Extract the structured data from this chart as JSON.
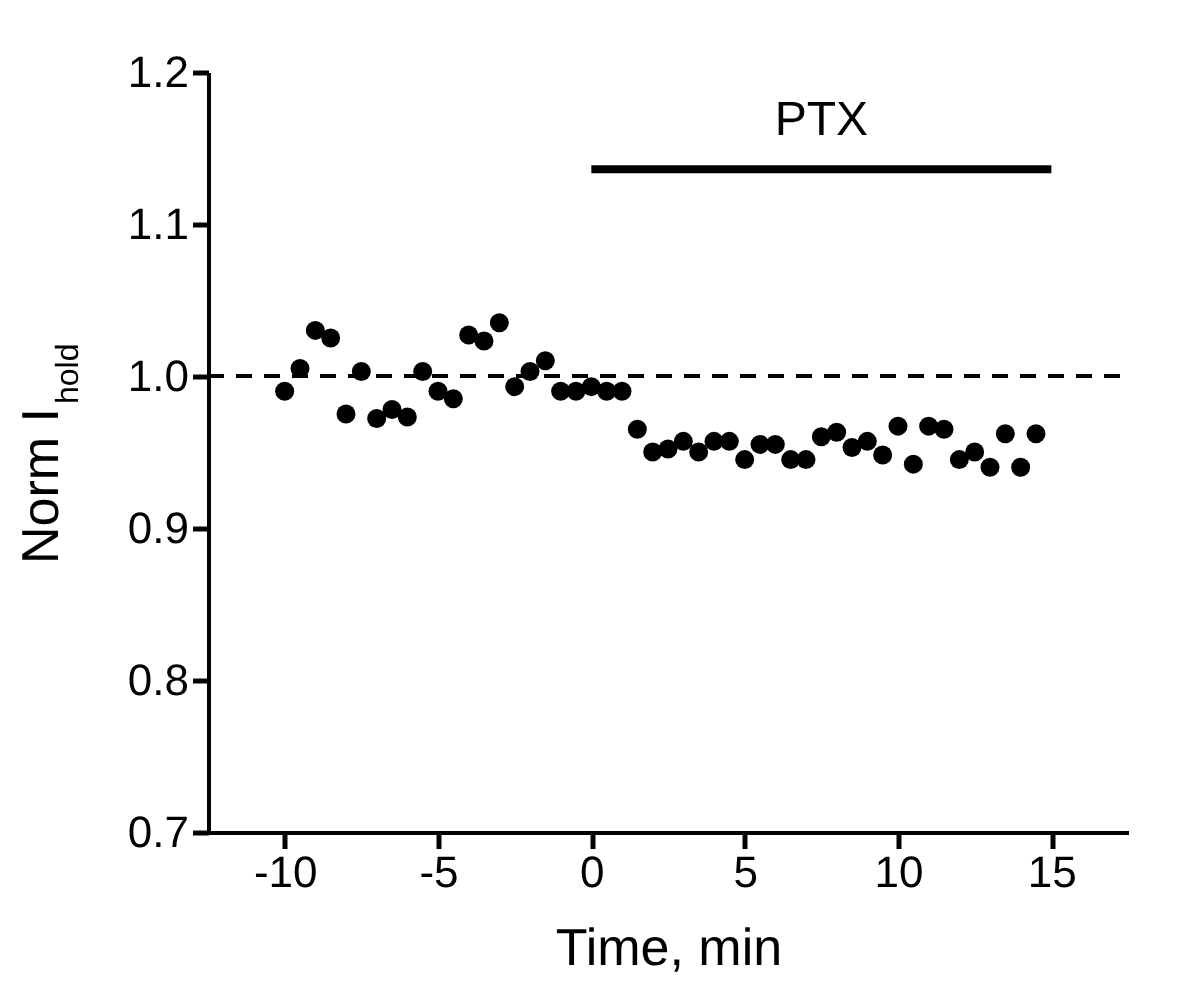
{
  "chart_data": {
    "type": "scatter",
    "xlabel": "Time, min",
    "ylabel": "Norm I$_{hold}$",
    "x": [
      -10,
      -9.5,
      -9,
      -8.5,
      -8,
      -7.5,
      -7,
      -6.5,
      -6,
      -5.5,
      -5,
      -4.5,
      -4,
      -3.5,
      -3,
      -2.5,
      -2,
      -1.5,
      -1,
      -0.5,
      0,
      0.5,
      1,
      1.5,
      2,
      2.5,
      3,
      3.5,
      4,
      4.5,
      5,
      5.5,
      6,
      6.5,
      7,
      7.5,
      8,
      8.5,
      9,
      9.5,
      10,
      10.5,
      11,
      11.5,
      12,
      12.5,
      13,
      13.5,
      14,
      14.5
    ],
    "series": [
      {
        "type": "line",
        "color": "#000000",
        "x": [
          0,
          15
        ],
        "values": [
          1.136,
          1.136
        ]
      },
      {
        "color": "#000000",
        "marker": "circle",
        "values": [
          0.99,
          1.005,
          1.03,
          1.025,
          0.975,
          1.003,
          0.972,
          0.978,
          0.973,
          1.003,
          0.99,
          0.985,
          1.027,
          1.023,
          1.035,
          0.993,
          1.003,
          1.01,
          0.99,
          0.99,
          0.993,
          0.99,
          0.99,
          0.965,
          0.95,
          0.952,
          0.957,
          0.95,
          0.957,
          0.957,
          0.945,
          0.955,
          0.955,
          0.945,
          0.945,
          0.96,
          0.963,
          0.953,
          0.957,
          0.948,
          0.967,
          0.942,
          0.967,
          0.965,
          0.945,
          0.95,
          0.94,
          0.962,
          0.94,
          0.962
        ]
      }
    ],
    "xlim": [
      -12.5,
      17.5
    ],
    "xticks": [
      -10,
      -5,
      0,
      5,
      10,
      15
    ],
    "ylim": [
      0.7,
      1.2
    ],
    "yticks": [
      0.7,
      0.8,
      0.9,
      {
        "value": 1.0,
        "label": "1.0"
      },
      1.1,
      1.2
    ],
    "annotations": [
      "PTX"
    ],
    "ref_lines": [
      {
        "axis": "y",
        "value": 1.0,
        "line_style": "dashed",
        "color": "#000000"
      }
    ],
    "grid": false
  }
}
